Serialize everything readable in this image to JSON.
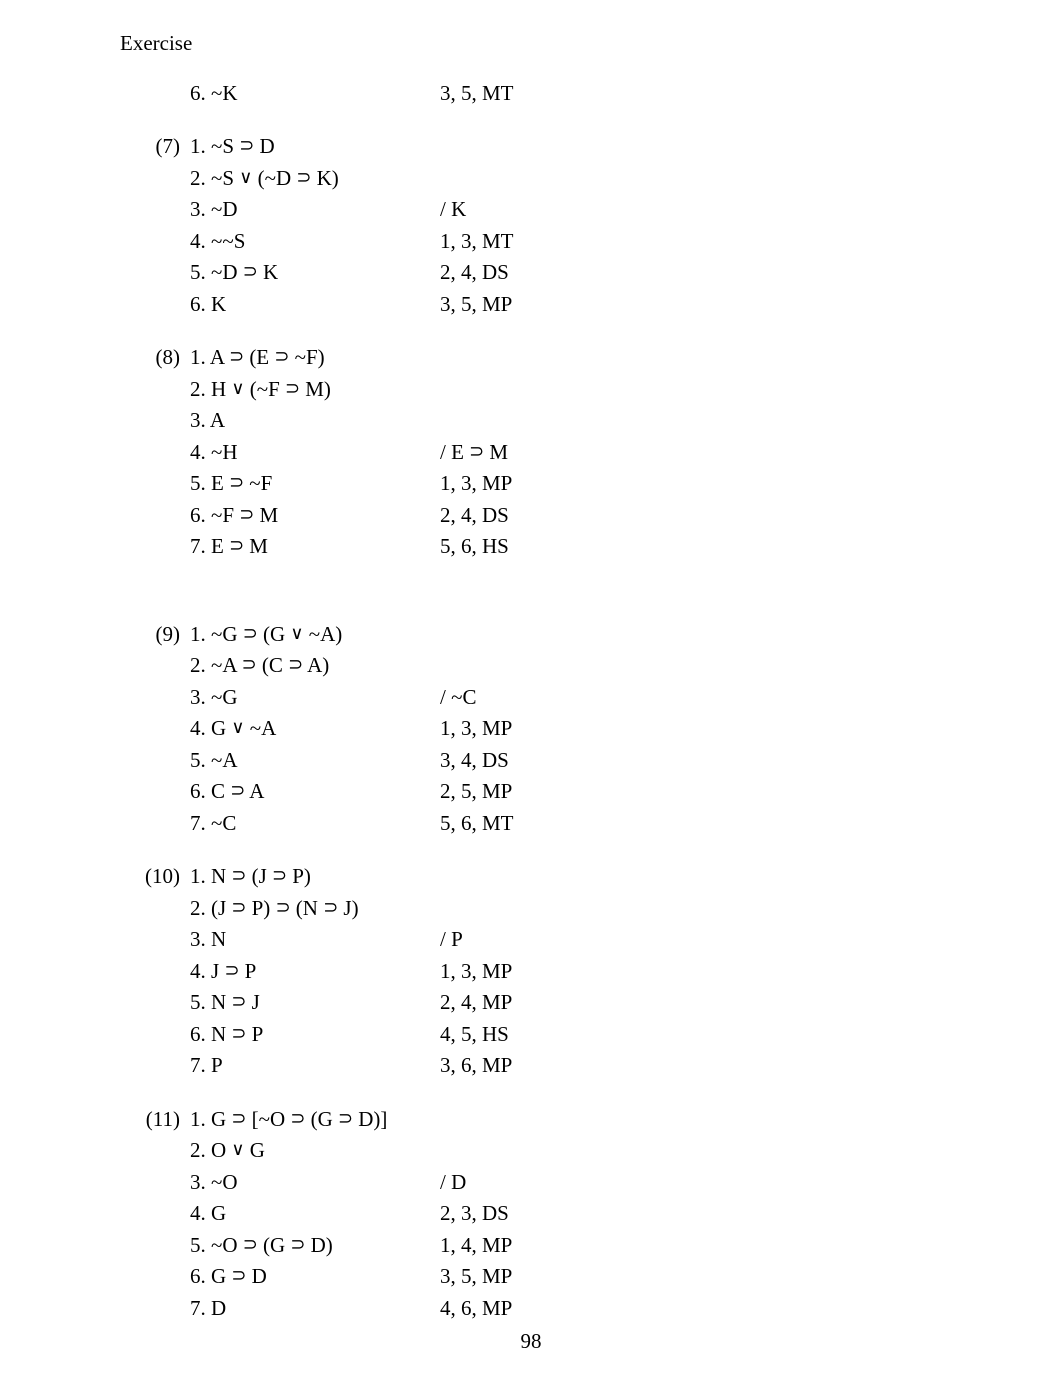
{
  "title": "Exercise",
  "page_number": "98",
  "symbols": {
    "horseshoe": "⊃",
    "vee": "∨",
    "tilde": "~"
  },
  "colors": {
    "text": "#000000",
    "background": "#ffffff"
  },
  "font": {
    "family": "Times New Roman",
    "size_pt": 16
  },
  "blocks": [
    {
      "id": "top",
      "lines": [
        {
          "prob": "",
          "stmt": "6. ~K",
          "just": "3, 5, MT"
        }
      ]
    },
    {
      "id": "7",
      "lines": [
        {
          "prob": "(7)",
          "stmt": "1. ~S ⊃ D",
          "just": ""
        },
        {
          "prob": "",
          "stmt": "2. ~S ∨ (~D ⊃ K)",
          "just": ""
        },
        {
          "prob": "",
          "stmt": "3. ~D",
          "just": "/ K"
        },
        {
          "prob": "",
          "stmt": "4. ~~S",
          "just": "1, 3, MT"
        },
        {
          "prob": "",
          "stmt": "5. ~D ⊃ K",
          "just": "2, 4, DS"
        },
        {
          "prob": "",
          "stmt": "6. K",
          "just": "3, 5, MP"
        }
      ]
    },
    {
      "id": "8",
      "extra_gap": true,
      "lines": [
        {
          "prob": "(8)",
          "stmt": "1. A ⊃ (E ⊃ ~F)",
          "just": ""
        },
        {
          "prob": "",
          "stmt": "2. H ∨ (~F ⊃ M)",
          "just": ""
        },
        {
          "prob": "",
          "stmt": "3. A",
          "just": ""
        },
        {
          "prob": "",
          "stmt": "4. ~H",
          "just": "/ E ⊃ M"
        },
        {
          "prob": "",
          "stmt": "5. E ⊃ ~F",
          "just": "1, 3, MP"
        },
        {
          "prob": "",
          "stmt": "6. ~F ⊃ M",
          "just": "2, 4, DS"
        },
        {
          "prob": "",
          "stmt": "7. E ⊃ M",
          "just": "5, 6, HS"
        }
      ]
    },
    {
      "id": "9",
      "lines": [
        {
          "prob": "(9)",
          "stmt": "1. ~G ⊃ (G ∨ ~A)",
          "just": ""
        },
        {
          "prob": "",
          "stmt": "2. ~A ⊃ (C ⊃ A)",
          "just": ""
        },
        {
          "prob": "",
          "stmt": "3. ~G",
          "just": "/ ~C"
        },
        {
          "prob": "",
          "stmt": "4. G ∨ ~A",
          "just": "1, 3, MP"
        },
        {
          "prob": "",
          "stmt": "5. ~A",
          "just": "3, 4, DS"
        },
        {
          "prob": "",
          "stmt": "6. C ⊃ A",
          "just": "2, 5, MP"
        },
        {
          "prob": "",
          "stmt": "7. ~C",
          "just": "5, 6, MT"
        }
      ]
    },
    {
      "id": "10",
      "lines": [
        {
          "prob": "(10)",
          "stmt": "1. N ⊃ (J ⊃ P)",
          "just": ""
        },
        {
          "prob": "",
          "stmt": "2. (J ⊃ P) ⊃ (N ⊃ J)",
          "just": ""
        },
        {
          "prob": "",
          "stmt": "3. N",
          "just": "/ P"
        },
        {
          "prob": "",
          "stmt": "4. J ⊃ P",
          "just": "1, 3, MP"
        },
        {
          "prob": "",
          "stmt": "5. N ⊃ J",
          "just": "2, 4, MP"
        },
        {
          "prob": "",
          "stmt": "6. N ⊃ P",
          "just": "4, 5, HS"
        },
        {
          "prob": "",
          "stmt": "7. P",
          "just": "3, 6, MP"
        }
      ]
    },
    {
      "id": "11",
      "lines": [
        {
          "prob": "(11)",
          "stmt": "1. G ⊃ [~O ⊃ (G ⊃ D)]",
          "just": ""
        },
        {
          "prob": "",
          "stmt": "2. O ∨ G",
          "just": ""
        },
        {
          "prob": "",
          "stmt": "3. ~O",
          "just": "/ D"
        },
        {
          "prob": "",
          "stmt": "4. G",
          "just": "2, 3, DS"
        },
        {
          "prob": "",
          "stmt": "5. ~O ⊃ (G ⊃ D)",
          "just": "1, 4, MP"
        },
        {
          "prob": "",
          "stmt": "6. G ⊃ D",
          "just": "3, 5, MP"
        },
        {
          "prob": "",
          "stmt": "7. D",
          "just": "4, 6, MP"
        }
      ]
    }
  ]
}
